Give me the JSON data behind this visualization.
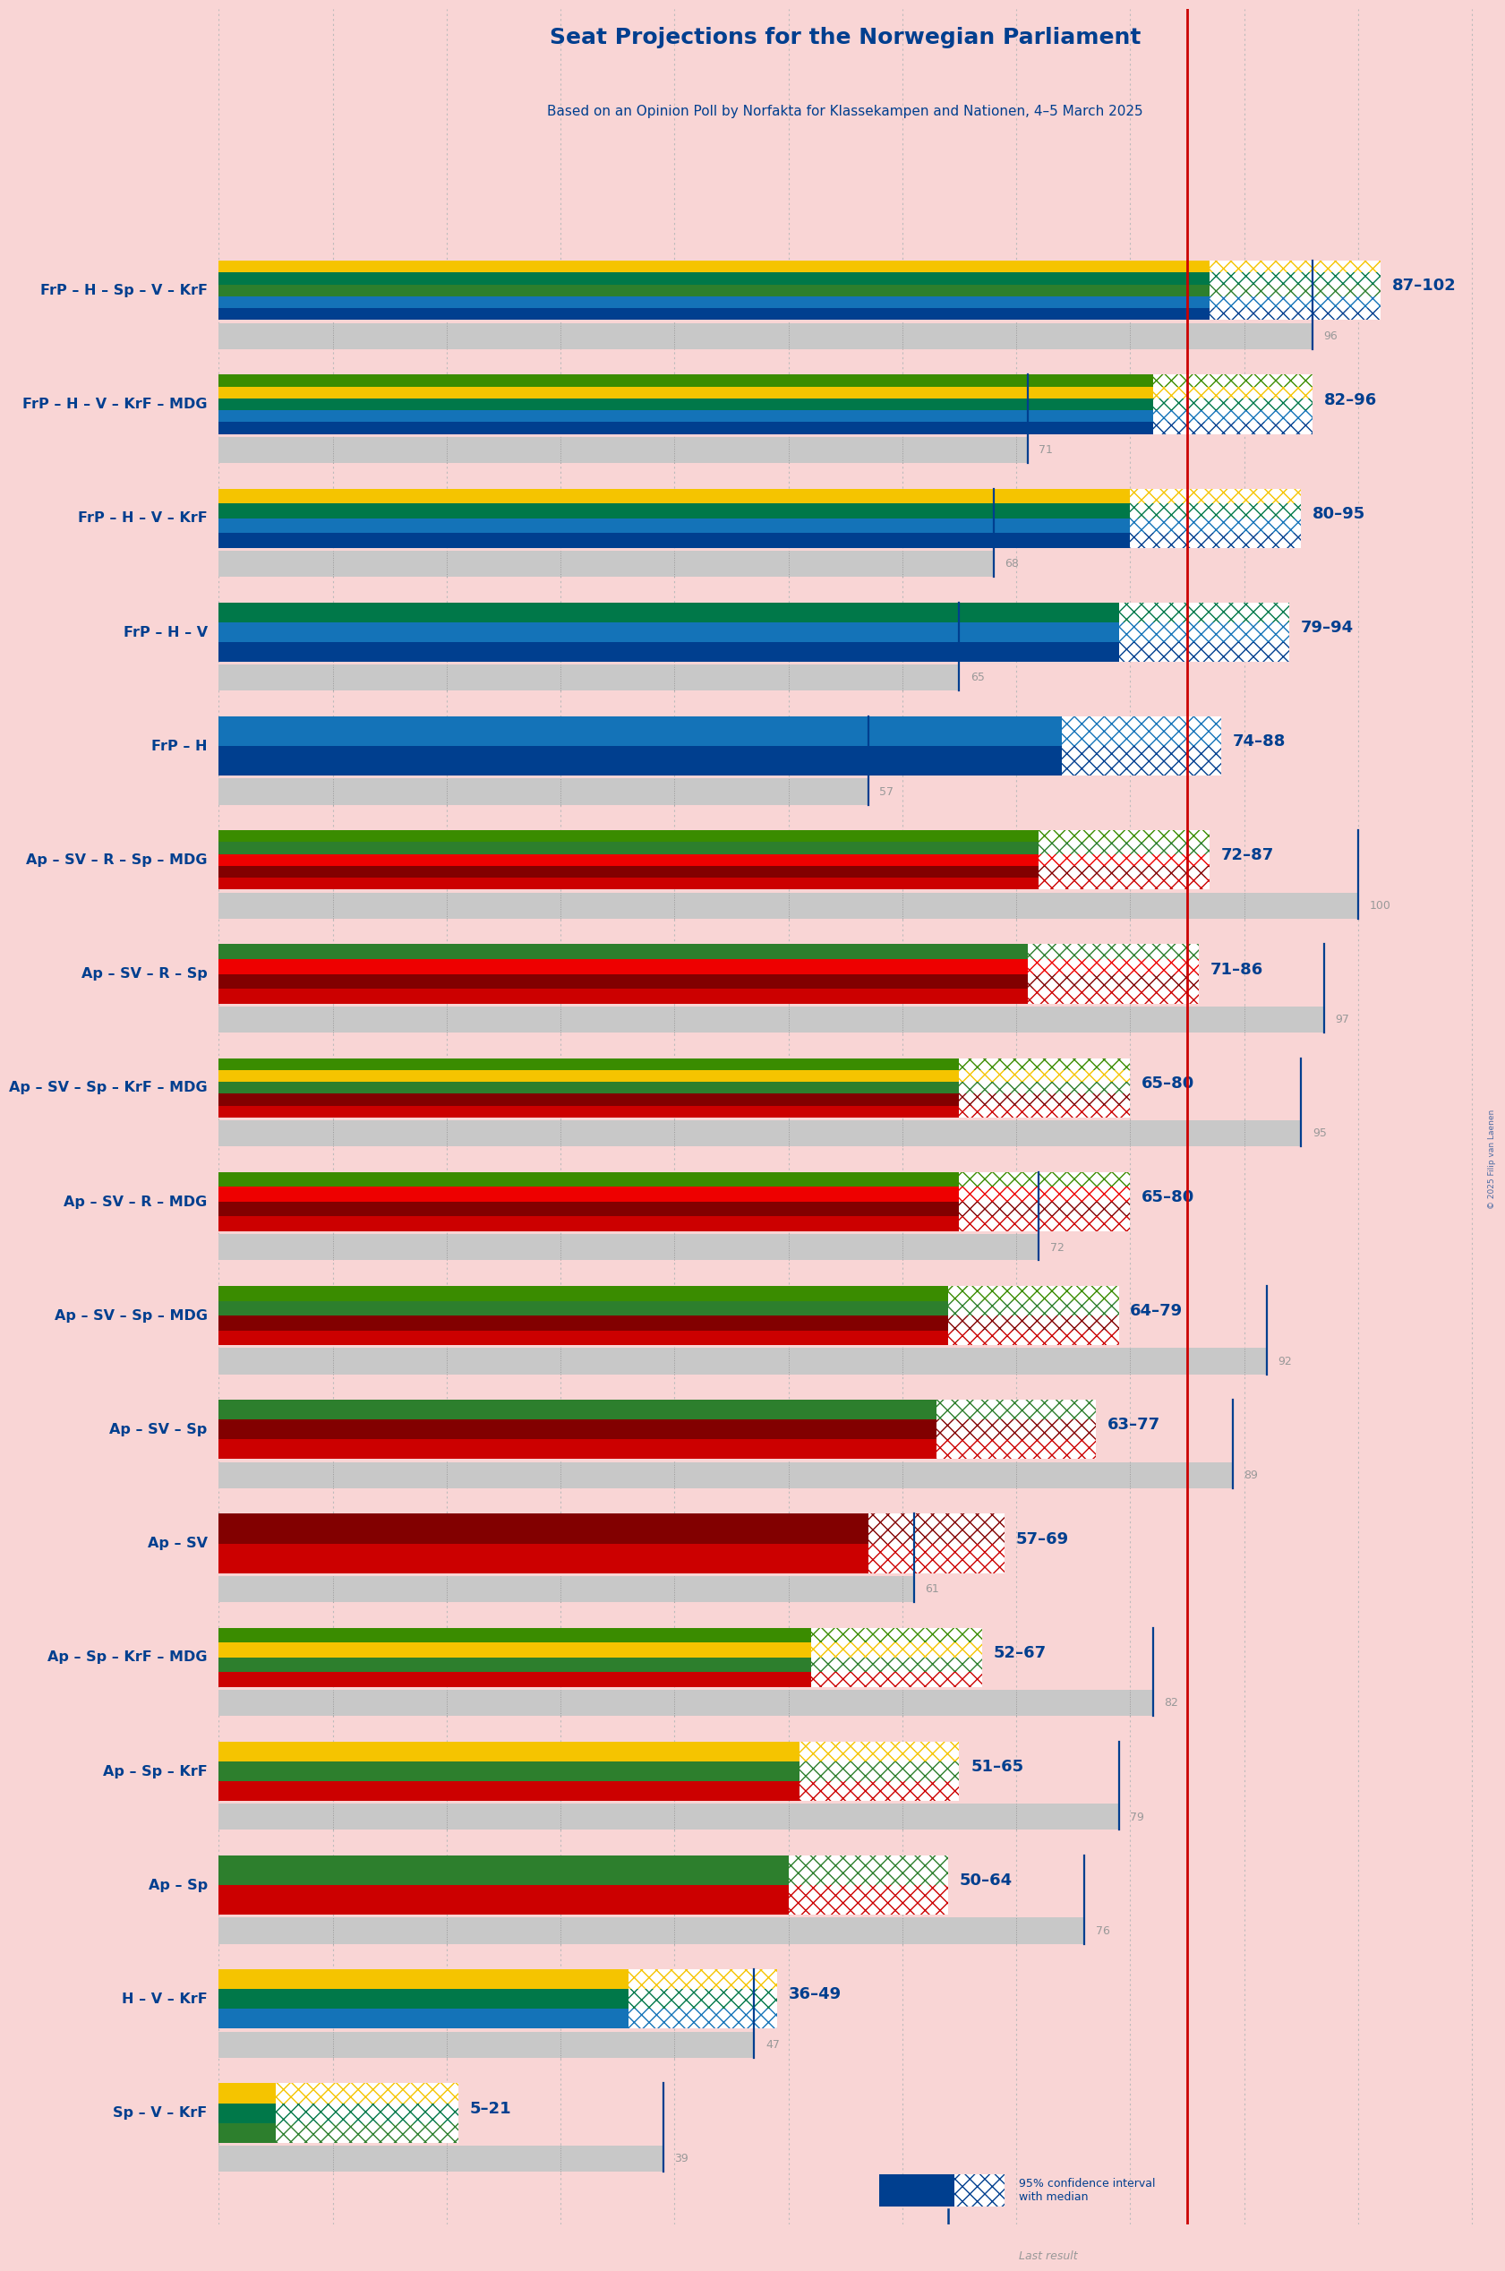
{
  "title": "Seat Projections for the Norwegian Parliament",
  "subtitle": "Based on an Opinion Poll by Norfakta for Klassekampen and Nationen, 4–5 March 2025",
  "copyright": "© 2025 Filip van Laenen",
  "background_color": "#f9d5d5",
  "majority_line": 85,
  "seat_max": 110,
  "coalitions": [
    {
      "label": "FrP – H – Sp – V – KrF",
      "low": 87,
      "high": 102,
      "last": 96,
      "colors": [
        "#003f8f",
        "#1473b8",
        "#2d7f2d",
        "#007849",
        "#f5c400"
      ],
      "underline": false
    },
    {
      "label": "FrP – H – V – KrF – MDG",
      "low": 82,
      "high": 96,
      "last": 71,
      "colors": [
        "#003f8f",
        "#1473b8",
        "#007849",
        "#f5c400",
        "#3a8c00"
      ],
      "underline": false
    },
    {
      "label": "FrP – H – V – KrF",
      "low": 80,
      "high": 95,
      "last": 68,
      "colors": [
        "#003f8f",
        "#1473b8",
        "#007849",
        "#f5c400"
      ],
      "underline": false
    },
    {
      "label": "FrP – H – V",
      "low": 79,
      "high": 94,
      "last": 65,
      "colors": [
        "#003f8f",
        "#1473b8",
        "#007849"
      ],
      "underline": false
    },
    {
      "label": "FrP – H",
      "low": 74,
      "high": 88,
      "last": 57,
      "colors": [
        "#003f8f",
        "#1473b8"
      ],
      "underline": false
    },
    {
      "label": "Ap – SV – R – Sp – MDG",
      "low": 72,
      "high": 87,
      "last": 100,
      "colors": [
        "#cc0000",
        "#820000",
        "#ee0000",
        "#2d7f2d",
        "#3a8c00"
      ],
      "underline": false
    },
    {
      "label": "Ap – SV – R – Sp",
      "low": 71,
      "high": 86,
      "last": 97,
      "colors": [
        "#cc0000",
        "#820000",
        "#ee0000",
        "#2d7f2d"
      ],
      "underline": false
    },
    {
      "label": "Ap – SV – Sp – KrF – MDG",
      "low": 65,
      "high": 80,
      "last": 95,
      "colors": [
        "#cc0000",
        "#820000",
        "#2d7f2d",
        "#f5c400",
        "#3a8c00"
      ],
      "underline": false
    },
    {
      "label": "Ap – SV – R – MDG",
      "low": 65,
      "high": 80,
      "last": 72,
      "colors": [
        "#cc0000",
        "#820000",
        "#ee0000",
        "#3a8c00"
      ],
      "underline": false
    },
    {
      "label": "Ap – SV – Sp – MDG",
      "low": 64,
      "high": 79,
      "last": 92,
      "colors": [
        "#cc0000",
        "#820000",
        "#2d7f2d",
        "#3a8c00"
      ],
      "underline": false
    },
    {
      "label": "Ap – SV – Sp",
      "low": 63,
      "high": 77,
      "last": 89,
      "colors": [
        "#cc0000",
        "#820000",
        "#2d7f2d"
      ],
      "underline": false
    },
    {
      "label": "Ap – SV",
      "low": 57,
      "high": 69,
      "last": 61,
      "colors": [
        "#cc0000",
        "#820000"
      ],
      "underline": true
    },
    {
      "label": "Ap – Sp – KrF – MDG",
      "low": 52,
      "high": 67,
      "last": 82,
      "colors": [
        "#cc0000",
        "#2d7f2d",
        "#f5c400",
        "#3a8c00"
      ],
      "underline": false
    },
    {
      "label": "Ap – Sp – KrF",
      "low": 51,
      "high": 65,
      "last": 79,
      "colors": [
        "#cc0000",
        "#2d7f2d",
        "#f5c400"
      ],
      "underline": false
    },
    {
      "label": "Ap – Sp",
      "low": 50,
      "high": 64,
      "last": 76,
      "colors": [
        "#cc0000",
        "#2d7f2d"
      ],
      "underline": false
    },
    {
      "label": "H – V – KrF",
      "low": 36,
      "high": 49,
      "last": 47,
      "colors": [
        "#1473b8",
        "#007849",
        "#f5c400"
      ],
      "underline": false
    },
    {
      "label": "Sp – V – KrF",
      "low": 5,
      "high": 21,
      "last": 39,
      "colors": [
        "#2d7f2d",
        "#007849",
        "#f5c400"
      ],
      "underline": false
    }
  ]
}
